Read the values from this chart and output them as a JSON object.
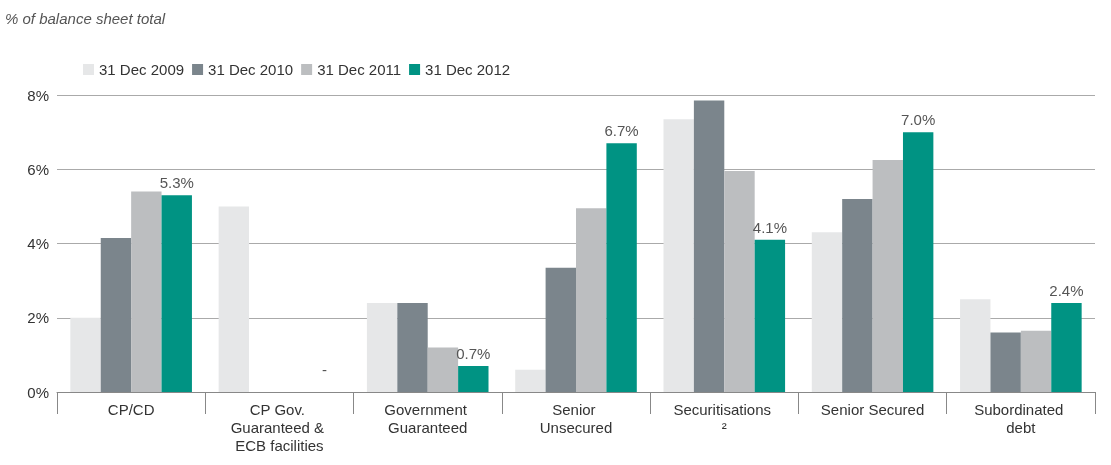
{
  "chart_data": {
    "type": "bar",
    "ylabel": "% of balance sheet total",
    "categories": [
      "CP/CD",
      "CP Gov. Guaranteed & ECB facilities",
      "Government Guaranteed",
      "Senior Unsecured",
      "Securitisations ²",
      "Senior Secured",
      "Subordinated debt"
    ],
    "series": [
      {
        "name": "31 Dec 2009",
        "color": "#e6e7e8",
        "values": [
          2.0,
          5.0,
          2.4,
          0.6,
          7.35,
          4.3,
          2.5
        ]
      },
      {
        "name": "31 Dec 2010",
        "color": "#7b858c",
        "values": [
          4.15,
          null,
          2.4,
          3.35,
          7.85,
          5.2,
          1.6
        ]
      },
      {
        "name": "31 Dec 2011",
        "color": "#bcbec0",
        "values": [
          5.4,
          null,
          1.2,
          4.95,
          5.95,
          6.25,
          1.65
        ]
      },
      {
        "name": "31 Dec 2012",
        "color": "#009383",
        "values": [
          5.3,
          null,
          0.7,
          6.7,
          4.1,
          7.0,
          2.4
        ],
        "value_labels": [
          "5.3%",
          null,
          "0.7%",
          "6.7%",
          "4.1%",
          "7.0%",
          "2.4%"
        ]
      }
    ],
    "annotations": [
      "-"
    ],
    "ylim": [
      0,
      8
    ],
    "yticks": [
      {
        "value": 0,
        "label": "0%"
      },
      {
        "value": 2,
        "label": "2%"
      },
      {
        "value": 4,
        "label": "4%"
      },
      {
        "value": 6,
        "label": "6%"
      },
      {
        "value": 8,
        "label": "8%"
      }
    ],
    "grid": "y",
    "legend": "top left"
  }
}
